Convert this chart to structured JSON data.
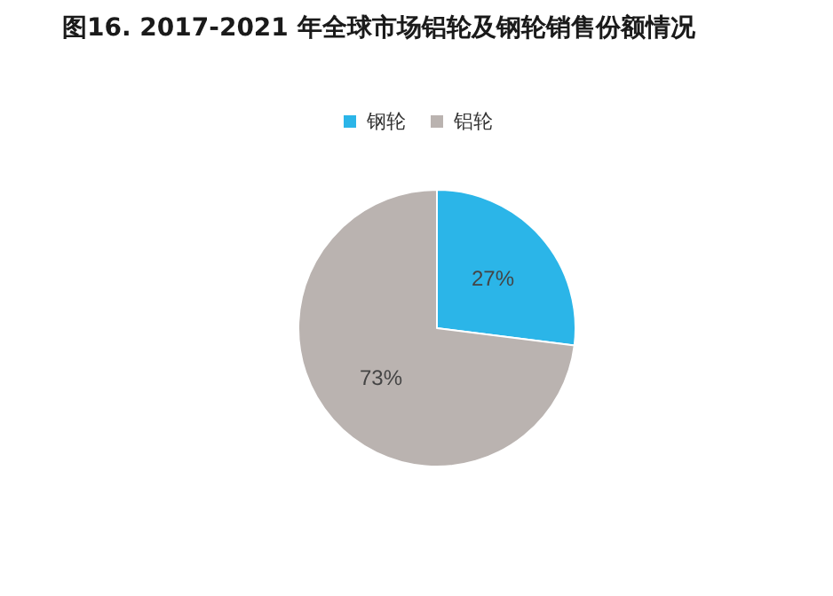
{
  "chart_data": {
    "type": "pie",
    "title": "图16. 2017-2021 年全球市场铝轮及钢轮销售份额情况",
    "categories": [
      "钢轮",
      "铝轮"
    ],
    "values": [
      27,
      73
    ],
    "colors": [
      "#2bb5e8",
      "#bab3b0"
    ],
    "legend": "top",
    "value_labels": [
      "27%",
      "73%"
    ]
  }
}
